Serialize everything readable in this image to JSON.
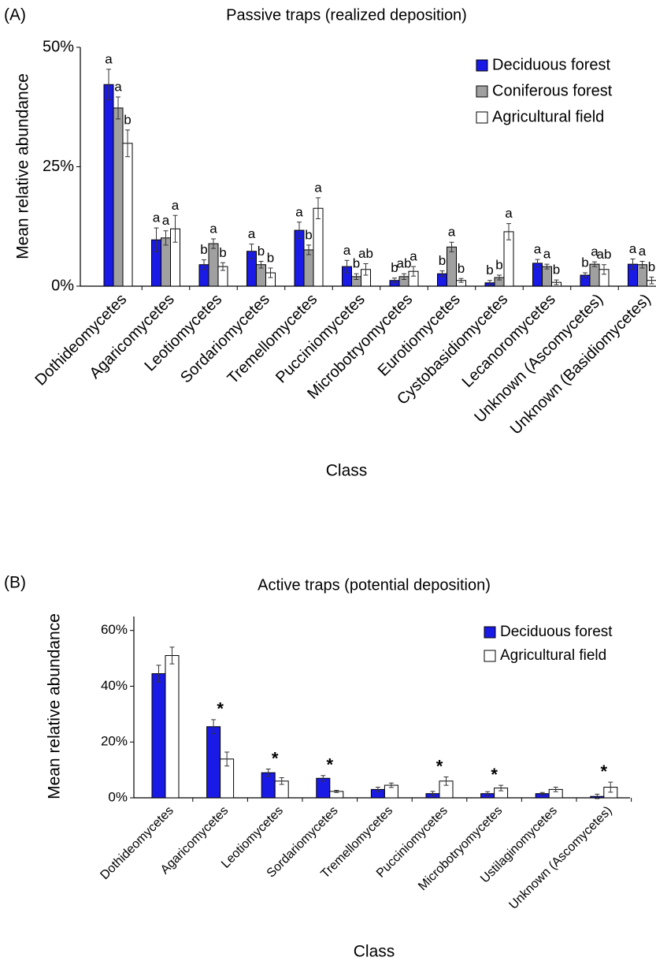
{
  "chart_data": [
    {
      "type": "bar",
      "panel_label": "(A)",
      "title": "Passive traps (realized deposition)",
      "xlabel": "Class",
      "ylabel": "Mean relative abundance",
      "categories": [
        "Dothideomycetes",
        "Agaricomycetes",
        "Leotiomycetes",
        "Sordariomycetes",
        "Tremellomycetes",
        "Pucciniomycetes",
        "Microbotryomycetes",
        "Eurotiomycetes",
        "Cystobasidiomycetes",
        "Lecanoromycetes",
        "Unknown (Ascomycetes)",
        "Unknown (Basidiomycetes)"
      ],
      "series": [
        {
          "name": "Deciduous forest",
          "color": "#1a1ae6",
          "values": [
            42.2,
            9.7,
            4.5,
            7.3,
            11.7,
            4.1,
            1.2,
            2.6,
            0.7,
            4.8,
            2.3,
            4.6
          ],
          "errors": [
            3.2,
            2.5,
            1.0,
            1.5,
            1.7,
            1.3,
            0.5,
            0.6,
            0.5,
            0.8,
            0.5,
            1.1
          ],
          "labels": [
            "a",
            "a",
            "b",
            "a",
            "a",
            "a",
            "b",
            "b",
            "b",
            "a",
            "b",
            "a"
          ]
        },
        {
          "name": "Coniferous forest",
          "color": "#a0a0a0",
          "values": [
            37.3,
            10.1,
            8.9,
            4.5,
            7.6,
            2.0,
            2.0,
            8.2,
            1.8,
            4.1,
            4.6,
            4.5
          ],
          "errors": [
            2.3,
            1.5,
            1.0,
            0.7,
            1.0,
            0.6,
            0.6,
            1.0,
            0.5,
            0.5,
            0.5,
            0.7
          ],
          "labels": [
            "a",
            "a",
            "a",
            "b",
            "b",
            "b",
            "ab",
            "a",
            "b",
            "a",
            "a",
            "a"
          ]
        },
        {
          "name": "Agricultural field",
          "color": "#ffffff",
          "values": [
            29.9,
            12.0,
            4.1,
            2.8,
            16.3,
            3.5,
            3.1,
            1.2,
            11.4,
            0.8,
            3.5,
            1.2
          ],
          "errors": [
            2.8,
            2.8,
            0.8,
            1.0,
            2.2,
            1.2,
            1.0,
            0.4,
            1.7,
            0.5,
            1.0,
            0.7
          ],
          "labels": [
            "b",
            "a",
            "b",
            "b",
            "a",
            "ab",
            "a",
            "b",
            "a",
            "b",
            "ab",
            "b"
          ]
        }
      ],
      "ylim": [
        0,
        50
      ],
      "yticks": [
        {
          "value": 0,
          "label": "0%"
        },
        {
          "value": 25,
          "label": "25%"
        },
        {
          "value": 50,
          "label": "50%"
        }
      ],
      "legend": "upper right"
    },
    {
      "type": "bar",
      "panel_label": "(B)",
      "title": "Active traps (potential deposition)",
      "xlabel": "Class",
      "ylabel": "Mean relative abundance",
      "categories": [
        "Dothideomycetes",
        "Agaricomycetes",
        "Leotiomycetes",
        "Sordariomycetes",
        "Tremellomycetes",
        "Pucciniomycetes",
        "Microbotryomycetes",
        "Ustilaginomycetes",
        "Unknown (Ascomycetes)"
      ],
      "series": [
        {
          "name": "Deciduous forest",
          "color": "#1a1ae6",
          "values": [
            44.5,
            25.5,
            9.0,
            7.0,
            3.0,
            1.5,
            1.5,
            1.5,
            0.5
          ],
          "errors": [
            3.0,
            2.5,
            1.3,
            1.0,
            0.8,
            0.8,
            0.7,
            0.4,
            0.8
          ]
        },
        {
          "name": "Agricultural field",
          "color": "#ffffff",
          "values": [
            51.0,
            13.9,
            6.0,
            2.3,
            4.5,
            6.0,
            3.5,
            3.0,
            3.8
          ],
          "errors": [
            3.0,
            2.5,
            1.2,
            0.4,
            0.8,
            1.5,
            1.0,
            0.8,
            1.8
          ]
        }
      ],
      "annotations": [
        null,
        "*",
        "*",
        "*",
        null,
        "*",
        "*",
        null,
        "*"
      ],
      "ylim": [
        0,
        65
      ],
      "yticks": [
        {
          "value": 0,
          "label": "0%"
        },
        {
          "value": 20,
          "label": "20%"
        },
        {
          "value": 40,
          "label": "40%"
        },
        {
          "value": 60,
          "label": "60%"
        }
      ],
      "legend": "upper right"
    }
  ]
}
